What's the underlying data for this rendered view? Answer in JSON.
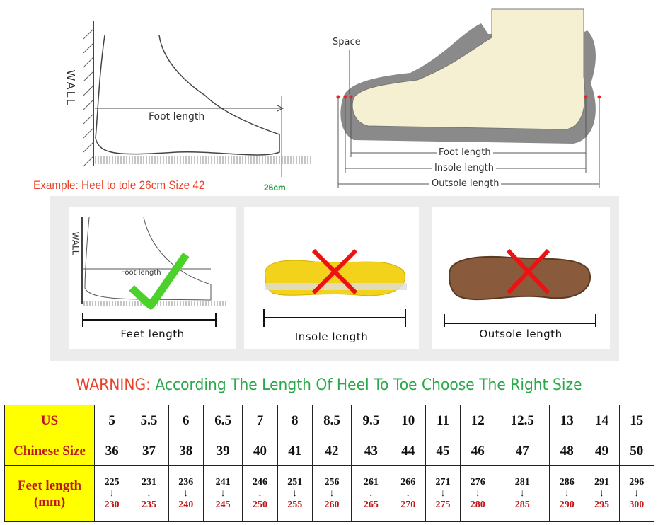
{
  "top_left": {
    "wall_label": "WALL",
    "foot_length_label": "Foot length",
    "example": "Example: Heel to tole 26cm Size 42",
    "measure": "26cm"
  },
  "top_right": {
    "space_label": "Space",
    "foot_length": "Foot length",
    "insole_length": "Insole length",
    "outsole_length": "Outsole length"
  },
  "cards": [
    {
      "label": "Feet length",
      "wall": "WALL",
      "inner": "Foot length",
      "mark": "check"
    },
    {
      "label": "Insole length",
      "mark": "cross"
    },
    {
      "label": "Outsole length",
      "mark": "cross"
    }
  ],
  "warning": {
    "prefix": "WARNING:",
    "text": "According The Length Of Heel To Toe Choose The Right Size"
  },
  "table": {
    "headers": [
      "US",
      "Chinese Size",
      "Feet length (mm)"
    ],
    "us": [
      "5",
      "5.5",
      "6",
      "6.5",
      "7",
      "8",
      "8.5",
      "9.5",
      "10",
      "11",
      "12",
      "12.5",
      "13",
      "14",
      "15"
    ],
    "chinese": [
      "36",
      "37",
      "38",
      "39",
      "40",
      "41",
      "42",
      "43",
      "44",
      "45",
      "46",
      "47",
      "48",
      "49",
      "50"
    ],
    "feet_min": [
      "225",
      "231",
      "236",
      "241",
      "246",
      "251",
      "256",
      "261",
      "266",
      "271",
      "276",
      "281",
      "286",
      "291",
      "296"
    ],
    "feet_max": [
      "230",
      "235",
      "240",
      "245",
      "250",
      "255",
      "260",
      "265",
      "270",
      "275",
      "280",
      "285",
      "290",
      "295",
      "300"
    ]
  },
  "colors": {
    "header_bg": "#ffff00",
    "header_text": "#c0181a",
    "warning": "#e8432a",
    "green": "#2aa84a"
  }
}
